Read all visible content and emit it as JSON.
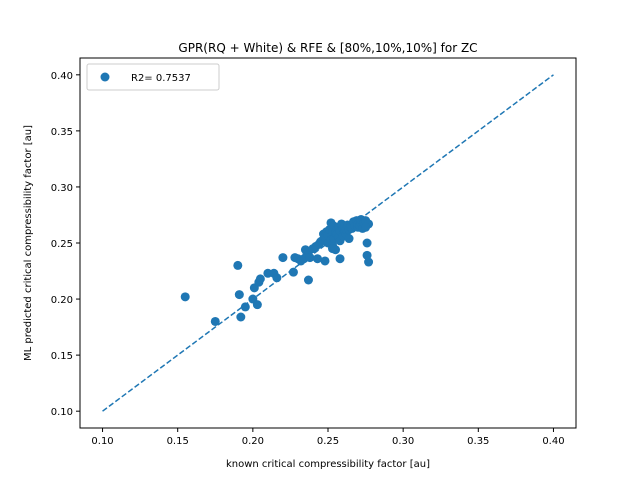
{
  "chart_data": {
    "type": "scatter",
    "title": "GPR(RQ + White) & RFE & [80%,10%,10%] for ZC",
    "xlabel": "known critical compressibility factor [au]",
    "ylabel": "ML predicted critical compressibility factor [au]",
    "xlim": [
      0.085,
      0.415
    ],
    "ylim": [
      0.085,
      0.415
    ],
    "xticks": [
      "0.10",
      "0.15",
      "0.20",
      "0.25",
      "0.30",
      "0.35",
      "0.40"
    ],
    "yticks": [
      "0.10",
      "0.15",
      "0.20",
      "0.25",
      "0.30",
      "0.35",
      "0.40"
    ],
    "grid": false,
    "legend_position": "top-left",
    "series": [
      {
        "name": "R2= 0.7537",
        "color": "#1f77b4",
        "x": [
          0.155,
          0.175,
          0.19,
          0.191,
          0.192,
          0.195,
          0.2,
          0.201,
          0.203,
          0.204,
          0.205,
          0.21,
          0.214,
          0.216,
          0.22,
          0.227,
          0.228,
          0.23,
          0.232,
          0.234,
          0.235,
          0.236,
          0.237,
          0.238,
          0.24,
          0.242,
          0.243,
          0.244,
          0.245,
          0.246,
          0.247,
          0.248,
          0.248,
          0.249,
          0.25,
          0.25,
          0.251,
          0.252,
          0.252,
          0.253,
          0.253,
          0.254,
          0.254,
          0.255,
          0.255,
          0.256,
          0.256,
          0.257,
          0.257,
          0.258,
          0.258,
          0.259,
          0.26,
          0.26,
          0.261,
          0.261,
          0.262,
          0.262,
          0.263,
          0.264,
          0.264,
          0.265,
          0.266,
          0.267,
          0.268,
          0.269,
          0.27,
          0.27,
          0.271,
          0.272,
          0.272,
          0.273,
          0.274,
          0.275,
          0.276,
          0.276,
          0.277,
          0.277,
          0.258,
          0.275,
          0.253,
          0.237
        ],
        "y": [
          0.202,
          0.18,
          0.23,
          0.204,
          0.184,
          0.193,
          0.2,
          0.21,
          0.195,
          0.215,
          0.218,
          0.223,
          0.223,
          0.219,
          0.237,
          0.224,
          0.237,
          0.236,
          0.234,
          0.236,
          0.244,
          0.24,
          0.242,
          0.237,
          0.245,
          0.247,
          0.236,
          0.249,
          0.251,
          0.252,
          0.258,
          0.234,
          0.255,
          0.26,
          0.25,
          0.257,
          0.262,
          0.268,
          0.253,
          0.248,
          0.26,
          0.254,
          0.265,
          0.244,
          0.259,
          0.262,
          0.258,
          0.255,
          0.264,
          0.252,
          0.261,
          0.267,
          0.263,
          0.256,
          0.26,
          0.265,
          0.258,
          0.262,
          0.266,
          0.254,
          0.262,
          0.264,
          0.263,
          0.269,
          0.265,
          0.27,
          0.264,
          0.267,
          0.266,
          0.268,
          0.271,
          0.263,
          0.268,
          0.27,
          0.25,
          0.239,
          0.233,
          0.267,
          0.236,
          0.264,
          0.245,
          0.217
        ],
        "marker": "circle"
      },
      {
        "name": "",
        "color": "#1f77b4",
        "style": "dashed",
        "x": [
          0.1,
          0.4
        ],
        "y": [
          0.1,
          0.4
        ]
      }
    ]
  }
}
